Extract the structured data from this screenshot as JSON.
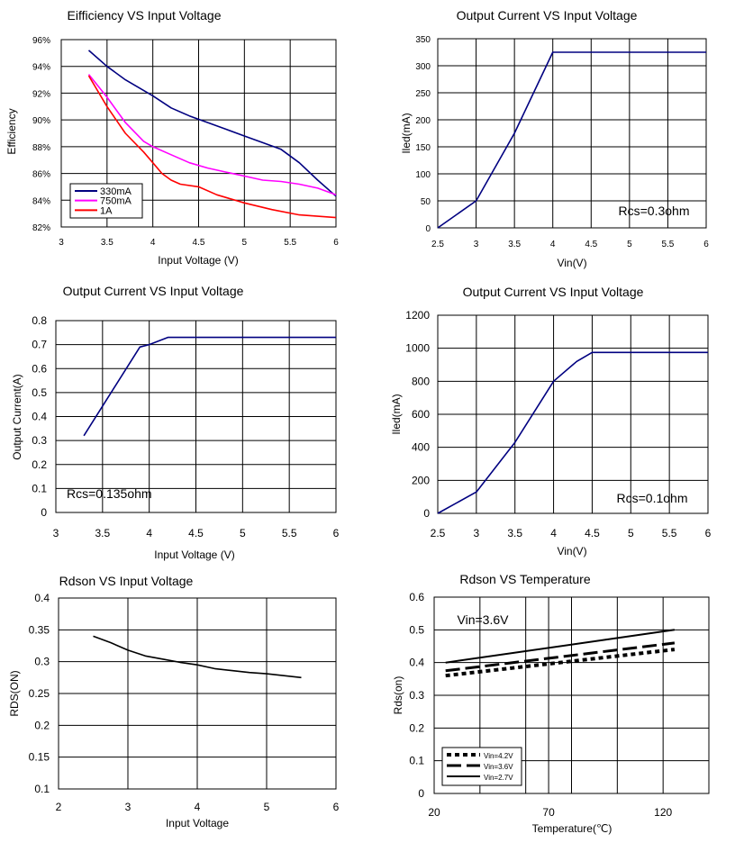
{
  "chart_data": [
    {
      "type": "line",
      "title": "Eifficiency VS Input Voltage",
      "xlabel": "Input Voltage (V)",
      "ylabel": "Efficiency",
      "xlim": [
        3,
        6
      ],
      "ylim": [
        82,
        96
      ],
      "xticks": [
        3,
        3.5,
        4,
        4.5,
        5,
        5.5,
        6
      ],
      "xtick_labels": [
        "3",
        "3.5",
        "4",
        "4.5",
        "5",
        "5.5",
        "6"
      ],
      "yticks": [
        82,
        84,
        86,
        88,
        90,
        92,
        94,
        96
      ],
      "ytick_labels": [
        "82%",
        "84%",
        "86%",
        "88%",
        "90%",
        "92%",
        "94%",
        "96%"
      ],
      "grid": true,
      "legend": "bottom-left",
      "annotation": "",
      "series": [
        {
          "name": "330mA",
          "color": "#000080",
          "x": [
            3.3,
            3.5,
            3.7,
            4.0,
            4.2,
            4.4,
            4.6,
            4.8,
            5.0,
            5.2,
            5.4,
            5.6,
            5.8,
            6.0
          ],
          "y": [
            95.2,
            94.0,
            93.0,
            91.8,
            90.9,
            90.3,
            89.8,
            89.3,
            88.8,
            88.3,
            87.8,
            86.8,
            85.5,
            84.3
          ]
        },
        {
          "name": "750mA",
          "color": "#ff00ff",
          "x": [
            3.3,
            3.5,
            3.7,
            3.9,
            4.0,
            4.2,
            4.4,
            4.6,
            4.8,
            5.0,
            5.2,
            5.4,
            5.6,
            5.8,
            6.0
          ],
          "y": [
            93.4,
            91.7,
            89.8,
            88.4,
            88.0,
            87.4,
            86.8,
            86.4,
            86.1,
            85.8,
            85.5,
            85.4,
            85.2,
            84.9,
            84.4
          ]
        },
        {
          "name": "1A",
          "color": "#ff0000",
          "x": [
            3.3,
            3.5,
            3.7,
            3.9,
            4.0,
            4.1,
            4.2,
            4.3,
            4.5,
            4.7,
            5.0,
            5.3,
            5.6,
            6.0
          ],
          "y": [
            93.3,
            91.0,
            89.0,
            87.6,
            86.8,
            86.0,
            85.5,
            85.2,
            85.0,
            84.4,
            83.8,
            83.3,
            82.9,
            82.7
          ]
        }
      ]
    },
    {
      "type": "line",
      "title": "Output Current VS Input Voltage",
      "xlabel": "Vin(V)",
      "ylabel": "Iled(mA)",
      "xlim": [
        2.5,
        6
      ],
      "ylim": [
        0,
        350
      ],
      "xticks": [
        2.5,
        3,
        3.5,
        4,
        4.5,
        5,
        5.5,
        6
      ],
      "xtick_labels": [
        "2.5",
        "3",
        "3.5",
        "4",
        "4.5",
        "5",
        "5.5",
        "6"
      ],
      "yticks": [
        0,
        50,
        100,
        150,
        200,
        250,
        300,
        350
      ],
      "ytick_labels": [
        "0",
        "50",
        "100",
        "150",
        "200",
        "250",
        "300",
        "350"
      ],
      "grid": true,
      "legend": "",
      "annotation": "Rcs=0.3ohm",
      "series": [
        {
          "name": "Iled",
          "color": "#000080",
          "x": [
            2.5,
            3.0,
            3.5,
            4.0,
            6.0
          ],
          "y": [
            0,
            50,
            175,
            325,
            325
          ]
        }
      ]
    },
    {
      "type": "line",
      "title": "Output Current VS Input Voltage",
      "xlabel": "Input Voltage (V)",
      "ylabel": "Output Current(A)",
      "xlim": [
        3,
        6
      ],
      "ylim": [
        0,
        0.8
      ],
      "xticks": [
        3,
        3.5,
        4,
        4.5,
        5,
        5.5,
        6
      ],
      "xtick_labels": [
        "3",
        "3.5",
        "4",
        "4.5",
        "5",
        "5.5",
        "6"
      ],
      "yticks": [
        0,
        0.1,
        0.2,
        0.3,
        0.4,
        0.5,
        0.6,
        0.7,
        0.8
      ],
      "ytick_labels": [
        "0",
        "0.1",
        "0.2",
        "0.3",
        "0.4",
        "0.5",
        "0.6",
        "0.7",
        "0.8"
      ],
      "grid": true,
      "legend": "",
      "annotation": "Rcs=0.135ohm",
      "series": [
        {
          "name": "Output Current",
          "color": "#000080",
          "x": [
            3.3,
            3.9,
            4.0,
            4.2,
            6.0
          ],
          "y": [
            0.32,
            0.69,
            0.7,
            0.73,
            0.73
          ]
        }
      ]
    },
    {
      "type": "line",
      "title": "Output Current VS Input Voltage",
      "xlabel": "Vin(V)",
      "ylabel": "Iled(mA)",
      "xlim": [
        2.5,
        6
      ],
      "ylim": [
        0,
        1200
      ],
      "xticks": [
        2.5,
        3,
        3.5,
        4,
        4.5,
        5,
        5.5,
        6
      ],
      "xtick_labels": [
        "2.5",
        "3",
        "3.5",
        "4",
        "4.5",
        "5",
        "5.5",
        "6"
      ],
      "yticks": [
        0,
        200,
        400,
        600,
        800,
        1000,
        1200
      ],
      "ytick_labels": [
        "0",
        "200",
        "400",
        "600",
        "800",
        "1000",
        "1200"
      ],
      "grid": true,
      "legend": "",
      "annotation": "Rcs=0.1ohm",
      "series": [
        {
          "name": "Iled",
          "color": "#000080",
          "x": [
            2.5,
            3.0,
            3.5,
            4.0,
            4.3,
            4.5,
            6.0
          ],
          "y": [
            0,
            130,
            430,
            800,
            920,
            975,
            975
          ]
        }
      ]
    },
    {
      "type": "line",
      "title": "Rdson VS Input Voltage",
      "xlabel": "Input Voltage",
      "ylabel": "RDS(ON)",
      "xlim": [
        2,
        6
      ],
      "ylim": [
        0.1,
        0.4
      ],
      "xticks": [
        2,
        3,
        4,
        5,
        6
      ],
      "xtick_labels": [
        "2",
        "3",
        "4",
        "5",
        "6"
      ],
      "yticks": [
        0.1,
        0.15,
        0.2,
        0.25,
        0.3,
        0.35,
        0.4
      ],
      "ytick_labels": [
        "0.1",
        "0.15",
        "0.2",
        "0.25",
        "0.3",
        "0.35",
        "0.4"
      ],
      "grid": true,
      "legend": "",
      "annotation": "",
      "series": [
        {
          "name": "RDS(ON)",
          "color": "#000000",
          "x": [
            2.5,
            2.75,
            3.0,
            3.25,
            3.5,
            3.75,
            4.0,
            4.25,
            4.5,
            4.75,
            5.0,
            5.25,
            5.5
          ],
          "y": [
            0.34,
            0.33,
            0.318,
            0.309,
            0.304,
            0.299,
            0.295,
            0.289,
            0.286,
            0.283,
            0.281,
            0.278,
            0.275
          ]
        }
      ]
    },
    {
      "type": "line",
      "title": "Rdson VS Temperature",
      "xlabel": "Temperature(℃)",
      "ylabel": "Rds(on)",
      "xlim": [
        20,
        140
      ],
      "ylim": [
        0,
        0.6
      ],
      "xticks": [
        20,
        70,
        120
      ],
      "xtick_labels": [
        "20",
        "70",
        "120"
      ],
      "xgrid_values": [
        40,
        60,
        70,
        80,
        100,
        120
      ],
      "yticks": [
        0,
        0.1,
        0.2,
        0.3,
        0.4,
        0.5,
        0.6
      ],
      "ytick_labels": [
        "0",
        "0.1",
        "0.2",
        "0.3",
        "0.4",
        "0.5",
        "0.6"
      ],
      "grid": true,
      "legend": "bottom-left",
      "annotation": "Vin=3.6V",
      "series": [
        {
          "name": "Vin=4.2V",
          "color": "#000000",
          "dash": "5,4",
          "width": 4,
          "x": [
            25,
            125
          ],
          "y": [
            0.36,
            0.44
          ]
        },
        {
          "name": "Vin=3.6V",
          "color": "#000000",
          "dash": "16,6",
          "width": 3,
          "x": [
            25,
            125
          ],
          "y": [
            0.375,
            0.46
          ]
        },
        {
          "name": "Vin=2.7V",
          "color": "#000000",
          "dash": "",
          "width": 2,
          "x": [
            25,
            125
          ],
          "y": [
            0.4,
            0.5
          ]
        }
      ]
    }
  ]
}
